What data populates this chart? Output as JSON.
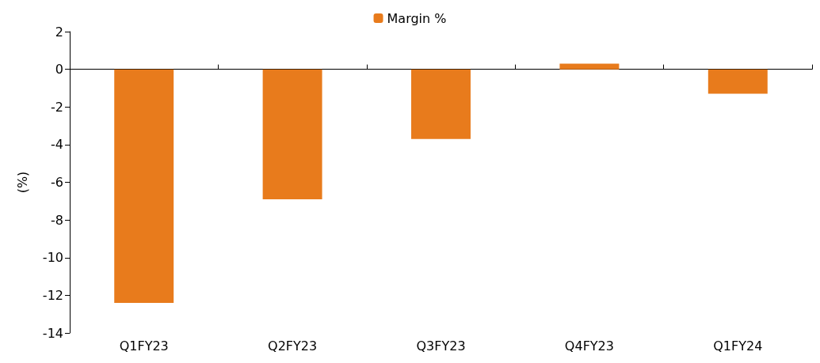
{
  "chart_data": {
    "type": "bar",
    "ylabel": "(%)",
    "categories": [
      "Q1FY23",
      "Q2FY23",
      "Q3FY23",
      "Q4FY23",
      "Q1FY24"
    ],
    "series": [
      {
        "name": "Margin %",
        "color": "#e87b1c",
        "values": [
          -12.4,
          -6.9,
          -3.7,
          0.3,
          -1.3
        ]
      }
    ],
    "ylim": [
      -14,
      2
    ],
    "yticks": [
      -14,
      -12,
      -10,
      -8,
      -6,
      -4,
      -2,
      0,
      2
    ],
    "legend": "top"
  }
}
